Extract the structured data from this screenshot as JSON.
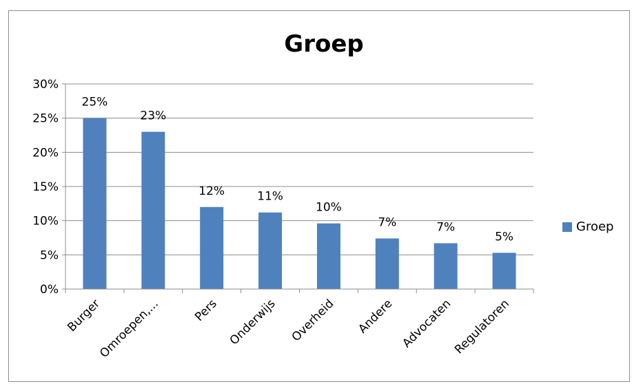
{
  "chart_data": {
    "type": "bar",
    "title": "Groep",
    "categories": [
      "Burger",
      "Omroepen,...",
      "Pers",
      "Onderwijs",
      "Overheid",
      "Andere",
      "Advocaten",
      "Regulatoren"
    ],
    "series": [
      {
        "name": "Groep",
        "values": [
          25,
          23,
          12,
          11.2,
          9.6,
          7.4,
          6.7,
          5.3
        ],
        "data_labels": [
          "25%",
          "23%",
          "12%",
          "11%",
          "10%",
          "7%",
          "7%",
          "5%"
        ],
        "color": "#4f81bd"
      }
    ],
    "ylim": [
      0,
      30
    ],
    "yticks": [
      "0%",
      "5%",
      "10%",
      "15%",
      "20%",
      "25%",
      "30%"
    ],
    "ytick_values": [
      0,
      5,
      10,
      15,
      20,
      25,
      30
    ],
    "grid": true,
    "legend": "right"
  }
}
